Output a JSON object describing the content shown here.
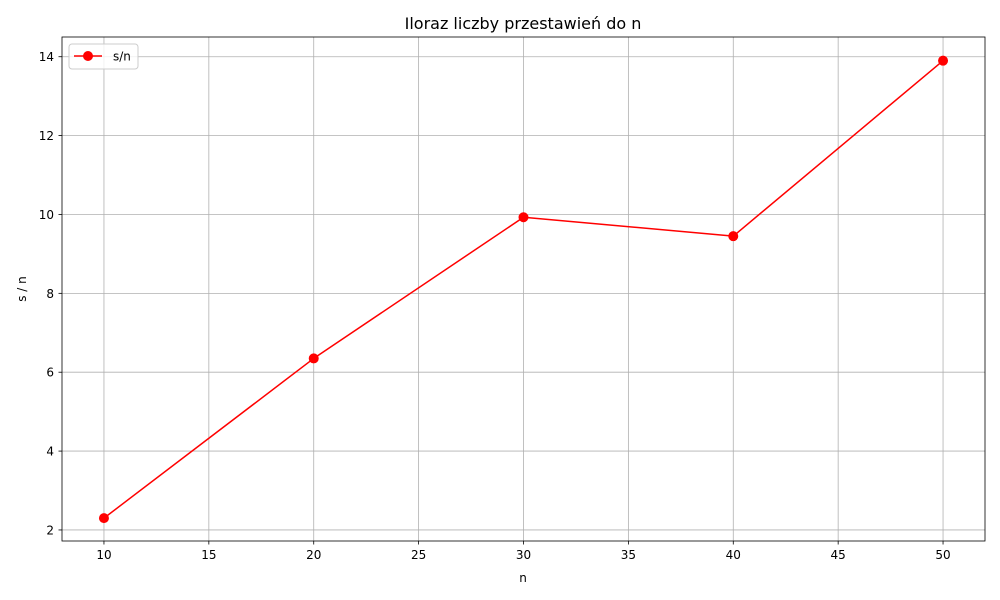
{
  "chart_data": {
    "type": "line",
    "title": "Iloraz liczby przestawień do n",
    "xlabel": "n",
    "ylabel": "s / n",
    "xlim": [
      8,
      52
    ],
    "ylim": [
      1.72,
      14.5
    ],
    "xticks": [
      10,
      15,
      20,
      25,
      30,
      35,
      40,
      45,
      50
    ],
    "yticks": [
      2,
      4,
      6,
      8,
      10,
      12,
      14
    ],
    "grid": true,
    "legend_position": "top-left",
    "series": [
      {
        "name": "s/n",
        "color": "#ff0000",
        "marker": "circle",
        "x": [
          10,
          20,
          30,
          40,
          50
        ],
        "y": [
          2.3,
          6.35,
          9.93,
          9.45,
          13.9
        ]
      }
    ]
  }
}
